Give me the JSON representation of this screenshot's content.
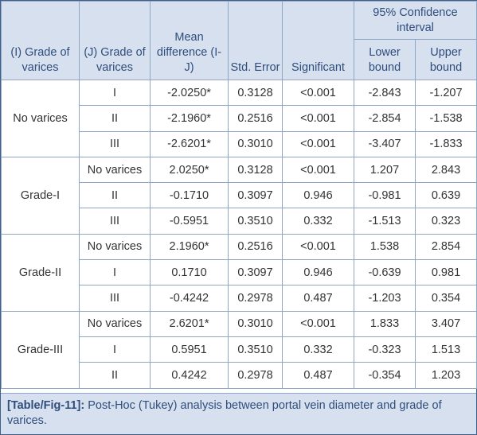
{
  "headers": {
    "grade_i": "(I) Grade of varices",
    "grade_j": "(J) Grade of varices",
    "mean_diff": "Mean difference (I-J)",
    "std_error": "Std. Error",
    "significant": "Significant",
    "ci": "95% Confidence interval",
    "lower": "Lower bound",
    "upper": "Upper bound"
  },
  "groups": [
    {
      "label": "No varices",
      "rows": [
        {
          "j": "I",
          "md": "-2.0250*",
          "se": "0.3128",
          "sig": "<0.001",
          "lo": "-2.843",
          "hi": "-1.207"
        },
        {
          "j": "II",
          "md": "-2.1960*",
          "se": "0.2516",
          "sig": "<0.001",
          "lo": "-2.854",
          "hi": "-1.538"
        },
        {
          "j": "III",
          "md": "-2.6201*",
          "se": "0.3010",
          "sig": "<0.001",
          "lo": "-3.407",
          "hi": "-1.833"
        }
      ]
    },
    {
      "label": "Grade-I",
      "rows": [
        {
          "j": "No varices",
          "md": "2.0250*",
          "se": "0.3128",
          "sig": "<0.001",
          "lo": "1.207",
          "hi": "2.843"
        },
        {
          "j": "II",
          "md": "-0.1710",
          "se": "0.3097",
          "sig": "0.946",
          "lo": "-0.981",
          "hi": "0.639"
        },
        {
          "j": "III",
          "md": "-0.5951",
          "se": "0.3510",
          "sig": "0.332",
          "lo": "-1.513",
          "hi": "0.323"
        }
      ]
    },
    {
      "label": "Grade-II",
      "rows": [
        {
          "j": "No varices",
          "md": "2.1960*",
          "se": "0.2516",
          "sig": "<0.001",
          "lo": "1.538",
          "hi": "2.854"
        },
        {
          "j": "I",
          "md": "0.1710",
          "se": "0.3097",
          "sig": "0.946",
          "lo": "-0.639",
          "hi": "0.981"
        },
        {
          "j": "III",
          "md": "-0.4242",
          "se": "0.2978",
          "sig": "0.487",
          "lo": "-1.203",
          "hi": "0.354"
        }
      ]
    },
    {
      "label": "Grade-III",
      "rows": [
        {
          "j": "No varices",
          "md": "2.6201*",
          "se": "0.3010",
          "sig": "<0.001",
          "lo": "1.833",
          "hi": "3.407"
        },
        {
          "j": "I",
          "md": "0.5951",
          "se": "0.3510",
          "sig": "0.332",
          "lo": "-0.323",
          "hi": "1.513"
        },
        {
          "j": "II",
          "md": "0.4242",
          "se": "0.2978",
          "sig": "0.487",
          "lo": "-0.354",
          "hi": "1.203"
        }
      ]
    }
  ],
  "caption": {
    "label": "[Table/Fig-11]:",
    "text": " Post-Hoc (Tukey) analysis between portal vein diameter and grade of varices."
  }
}
